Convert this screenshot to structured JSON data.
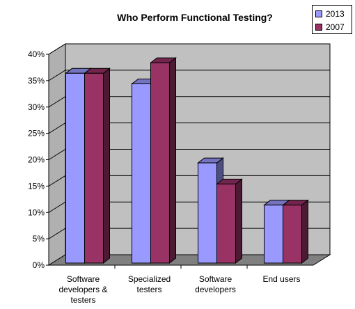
{
  "chart_data": {
    "type": "bar",
    "title": "Who Perform Functional Testing?",
    "categories": [
      "Software developers & testers",
      "Specialized testers",
      "Software developers",
      "End users"
    ],
    "category_lines": [
      [
        "Software",
        "developers &",
        "testers"
      ],
      [
        "Specialized",
        "testers"
      ],
      [
        "Software",
        "developers"
      ],
      [
        "End users"
      ]
    ],
    "series": [
      {
        "name": "2013",
        "values": [
          36,
          34,
          19,
          11
        ],
        "color": "#9999ff"
      },
      {
        "name": "2007",
        "values": [
          36,
          38,
          15,
          11
        ],
        "color": "#993366"
      }
    ],
    "ylim": [
      0,
      40
    ],
    "yticks": [
      "0%",
      "5%",
      "10%",
      "15%",
      "20%",
      "25%",
      "30%",
      "35%",
      "40%"
    ],
    "grid": true,
    "legend_position": "top-right",
    "background": "#c0c0c0",
    "style": "3d"
  }
}
